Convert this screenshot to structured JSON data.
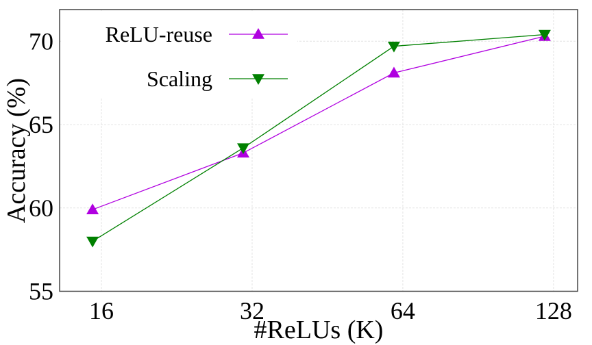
{
  "chart_data": {
    "type": "line",
    "title": "",
    "xlabel": "#ReLUs (K)",
    "ylabel": "Accuracy (%)",
    "x_scale": "log2",
    "x_ticks": [
      16,
      32,
      64,
      128
    ],
    "x_tick_labels": [
      "16",
      "32",
      "64",
      "128"
    ],
    "xlim": [
      13.2,
      143
    ],
    "y_ticks": [
      55,
      60,
      65,
      70
    ],
    "y_tick_labels": [
      "55",
      "60",
      "65",
      "70"
    ],
    "ylim": [
      55,
      71.9
    ],
    "grid": true,
    "legend_position": "top-left",
    "series": [
      {
        "name": "ReLU-reuse",
        "color": "#b000e0",
        "marker": "triangle-up",
        "x": [
          15.36,
          30.72,
          61.44,
          122.88
        ],
        "values": [
          59.9,
          63.3,
          68.1,
          70.3
        ]
      },
      {
        "name": "Scaling",
        "color": "#008000",
        "marker": "triangle-down",
        "x": [
          15.36,
          30.72,
          61.44,
          122.88
        ],
        "values": [
          58.0,
          63.6,
          69.7,
          70.4
        ]
      }
    ]
  }
}
